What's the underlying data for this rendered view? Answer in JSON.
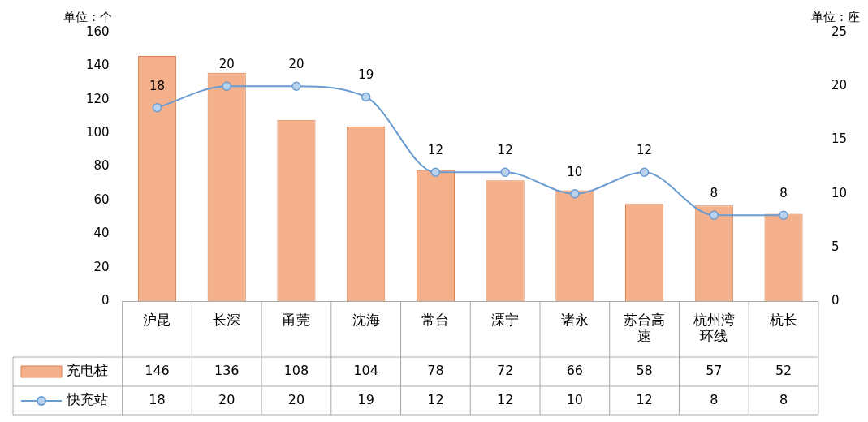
{
  "chart_data": {
    "type": "bar",
    "ylabel": "单位：个",
    "y2label": "单位：座",
    "categories": [
      "沪昆",
      "长深",
      "甬莞",
      "沈海",
      "常台",
      "溧宁",
      "诸永",
      "苏台高速",
      "杭州湾环线",
      "杭长"
    ],
    "series": [
      {
        "name": "充电桩",
        "color": "#f4b08a",
        "values": [
          146,
          136,
          108,
          104,
          78,
          72,
          66,
          58,
          57,
          52
        ]
      },
      {
        "name": "快充站",
        "type": "line",
        "axis": "y2",
        "color": "#6a9bd1",
        "marker": "circle",
        "values": [
          18,
          20,
          20,
          19,
          12,
          12,
          10,
          12,
          8,
          8
        ],
        "value_labels": [
          "18",
          "20",
          "20",
          "19",
          "12",
          "12",
          "10",
          "12",
          "8",
          "8"
        ]
      }
    ],
    "ylim": [
      0,
      160
    ],
    "yticks": [
      0,
      20,
      40,
      60,
      80,
      100,
      120,
      140,
      160
    ],
    "y2lim": [
      0,
      25
    ],
    "y2ticks": [
      0,
      5,
      10,
      15,
      20,
      25
    ],
    "data_labels": true,
    "legend": "bottom"
  }
}
